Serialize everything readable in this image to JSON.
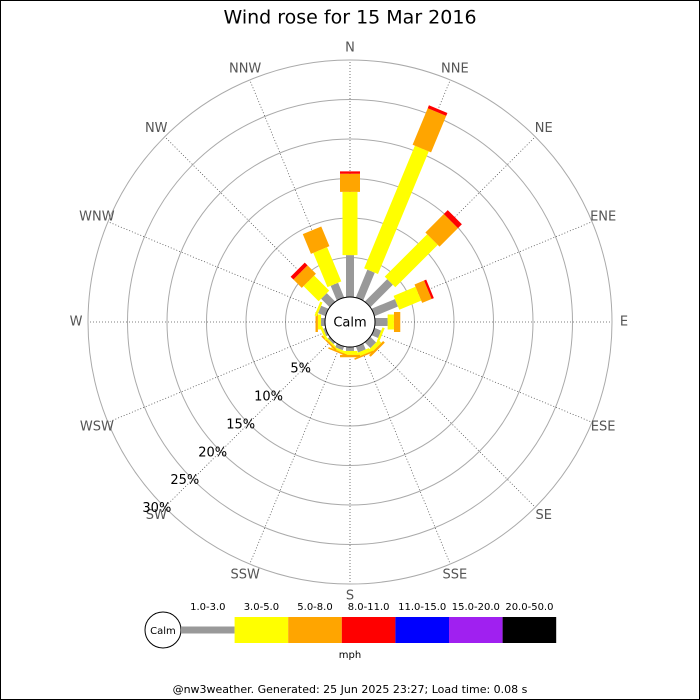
{
  "chart_data": {
    "type": "windrose",
    "title": "Wind rose for 15 Mar 2016",
    "center_label": "Calm",
    "categories": [
      "N",
      "NNE",
      "NE",
      "ENE",
      "E",
      "ESE",
      "SE",
      "SSE",
      "S",
      "SSW",
      "SW",
      "WSW",
      "W",
      "WNW",
      "NW",
      "NNW"
    ],
    "series": [
      {
        "name": "1.0-3.0",
        "color": "#999999",
        "values": [
          5.3,
          3.8,
          4.0,
          3.2,
          1.6,
          0.9,
          1.0,
          0.8,
          0.5,
          0.5,
          0.3,
          0.3,
          0.5,
          1.0,
          1.5,
          2.0
        ]
      },
      {
        "name": "3.0-5.0",
        "color": "#ffff00",
        "values": [
          8.0,
          16.8,
          7.6,
          3.0,
          0.8,
          0.3,
          0.5,
          0.5,
          0.5,
          0.3,
          0.2,
          0.3,
          0.4,
          0.3,
          2.7,
          4.7
        ]
      },
      {
        "name": "5.0-8.0",
        "color": "#ffa500",
        "values": [
          2.3,
          5.0,
          3.3,
          1.3,
          0.8,
          0,
          0.3,
          0.2,
          0.3,
          0.2,
          0.2,
          0,
          0.3,
          0,
          1.5,
          2.7
        ]
      },
      {
        "name": "8.0-11.0",
        "color": "#ff0000",
        "values": [
          0.3,
          0.4,
          0.7,
          0.3,
          0,
          0,
          0,
          0,
          0,
          0,
          0,
          0,
          0,
          0,
          0.5,
          0
        ]
      },
      {
        "name": "11.0-15.0",
        "color": "#0000ff",
        "values": [
          0,
          0,
          0,
          0,
          0,
          0,
          0,
          0,
          0,
          0,
          0,
          0,
          0,
          0,
          0,
          0
        ]
      },
      {
        "name": "15.0-20.0",
        "color": "#a020f0",
        "values": [
          0,
          0,
          0,
          0,
          0,
          0,
          0,
          0,
          0,
          0,
          0,
          0,
          0,
          0,
          0,
          0
        ]
      },
      {
        "name": "20.0-50.0",
        "color": "#000000",
        "values": [
          0,
          0,
          0,
          0,
          0,
          0,
          0,
          0,
          0,
          0,
          0,
          0,
          0,
          0,
          0,
          0
        ]
      }
    ],
    "rlim": [
      0,
      30
    ],
    "rticks": [
      {
        "value": 5,
        "label": "5%"
      },
      {
        "value": 10,
        "label": "10%"
      },
      {
        "value": 15,
        "label": "15%"
      },
      {
        "value": 20,
        "label": "20%"
      },
      {
        "value": 25,
        "label": "25%"
      },
      {
        "value": 30,
        "label": "30%"
      }
    ],
    "legend_unit": "mph",
    "footer": "@nw3weather. Generated: 25 Jun 2025 23:27; Load time: 0.08 s"
  }
}
